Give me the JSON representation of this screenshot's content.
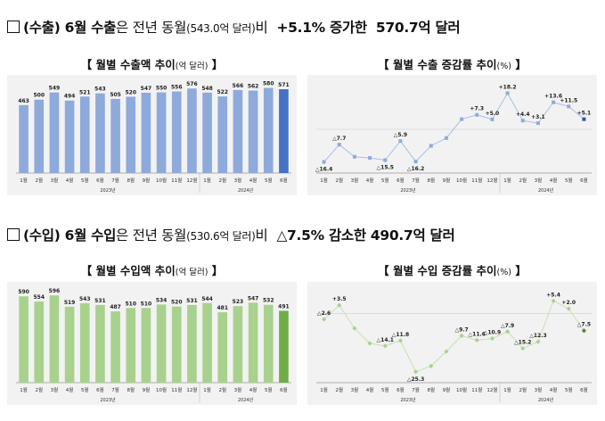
{
  "export_headline": {
    "part1": "(수출) 6월 수출",
    "part2": "은 전년 동월",
    "part3": "(543.0억 달러)",
    "part4": "비",
    "part5": "+5.1% 증가한",
    "part6": "570.7억 달러"
  },
  "import_headline": {
    "part1": "(수입) 6월 수입",
    "part2": "은 전년 동월",
    "part3": "(530.6억 달러)",
    "part4": "비",
    "part5": "△7.5% 감소한 490.7억 달러"
  },
  "chart_titles": {
    "export_amount": {
      "main": "【 월별 수출액 추이",
      "unit": "(억 달러)",
      "close": " 】"
    },
    "export_rate": {
      "main": "【 월별 수출 증감률 추이",
      "unit": "(%)",
      "close": " 】"
    },
    "import_amount": {
      "main": "【 월별 수입액 추이",
      "unit": "(억 달러)",
      "close": " 】"
    },
    "import_rate": {
      "main": "【 월별 수입 증감률 추이",
      "unit": "(%)",
      "close": " 】"
    }
  },
  "colors": {
    "export_bar": "#8eaadb",
    "export_bar_last": "#4472c4",
    "export_line": "#a9bfe6",
    "export_marker": "#8eaadb",
    "export_marker_last": "#2f5597",
    "import_bar": "#a9d18e",
    "import_bar_last": "#70ad47",
    "import_line": "#c5e0b4",
    "import_marker": "#a9d18e",
    "import_marker_last": "#548235",
    "panel": "#f2f2f2"
  },
  "chart_data": [
    {
      "id": "export_amount",
      "type": "bar",
      "categories": [
        "1월",
        "2월",
        "3월",
        "4월",
        "5월",
        "6월",
        "7월",
        "8월",
        "9월",
        "10월",
        "11월",
        "12월",
        "1월",
        "2월",
        "3월",
        "4월",
        "5월",
        "6월"
      ],
      "year_labels": [
        {
          "label": "2023년",
          "start": 0,
          "end": 11
        },
        {
          "label": "2024년",
          "start": 12,
          "end": 17
        }
      ],
      "values": [
        463,
        500,
        549,
        494,
        521,
        543,
        505,
        520,
        547,
        550,
        556,
        576,
        548,
        522,
        566,
        562,
        580,
        571
      ],
      "value_labels": [
        "463",
        "500",
        "549",
        "494",
        "521",
        "543",
        "505",
        "520",
        "547",
        "550",
        "556",
        "576",
        "548",
        "522",
        "566",
        "562",
        "580",
        "571"
      ],
      "ylim": [
        0,
        620
      ]
    },
    {
      "id": "export_rate",
      "type": "line",
      "categories": [
        "1월",
        "2월",
        "3월",
        "4월",
        "5월",
        "6월",
        "7월",
        "8월",
        "9월",
        "10월",
        "11월",
        "12월",
        "1월",
        "2월",
        "3월",
        "4월",
        "5월",
        "6월"
      ],
      "year_labels": [
        {
          "label": "2023년",
          "start": 0,
          "end": 11
        },
        {
          "label": "2024년",
          "start": 12,
          "end": 17
        }
      ],
      "values": [
        -16.4,
        -7.7,
        -13.8,
        -14.4,
        -15.5,
        -5.9,
        -16.2,
        -8.3,
        -4.4,
        5.1,
        7.3,
        5.0,
        18.2,
        4.4,
        3.1,
        13.6,
        11.5,
        5.1
      ],
      "data_labels": [
        "△16.4",
        "△7.7",
        "",
        "",
        "△15.5",
        "△5.9",
        "△16.2",
        "",
        "",
        "",
        "+7.3",
        "+5.0",
        "+18.2",
        "+4.4",
        "+3.1",
        "+13.6",
        "+11.5",
        "+5.1"
      ],
      "ylim": [
        -22,
        22
      ]
    },
    {
      "id": "import_amount",
      "type": "bar",
      "categories": [
        "1월",
        "2월",
        "3월",
        "4월",
        "5월",
        "6월",
        "7월",
        "8월",
        "9월",
        "10월",
        "11월",
        "12월",
        "1월",
        "2월",
        "3월",
        "4월",
        "5월",
        "6월"
      ],
      "year_labels": [
        {
          "label": "2023년",
          "start": 0,
          "end": 11
        },
        {
          "label": "2024년",
          "start": 12,
          "end": 17
        }
      ],
      "values": [
        590,
        554,
        596,
        519,
        543,
        531,
        487,
        510,
        510,
        534,
        520,
        531,
        544,
        481,
        523,
        547,
        532,
        491
      ],
      "value_labels": [
        "590",
        "554",
        "596",
        "519",
        "543",
        "531",
        "487",
        "510",
        "510",
        "534",
        "520",
        "531",
        "544",
        "481",
        "523",
        "547",
        "532",
        "491"
      ],
      "ylim": [
        0,
        640
      ]
    },
    {
      "id": "import_rate",
      "type": "line",
      "categories": [
        "1월",
        "2월",
        "3월",
        "4월",
        "5월",
        "6월",
        "7월",
        "8월",
        "9월",
        "10월",
        "11월",
        "12월",
        "1월",
        "2월",
        "3월",
        "4월",
        "5월",
        "6월"
      ],
      "year_labels": [
        {
          "label": "2023년",
          "start": 0,
          "end": 11
        },
        {
          "label": "2024년",
          "start": 12,
          "end": 17
        }
      ],
      "values": [
        -2.6,
        3.5,
        -6.5,
        -13.0,
        -14.1,
        -11.8,
        -25.3,
        -22.8,
        -16.5,
        -9.7,
        -11.6,
        -10.9,
        -7.9,
        -15.2,
        -12.3,
        5.4,
        2.0,
        -7.5
      ],
      "data_labels": [
        "△2.6",
        "+3.5",
        "",
        "",
        "△14.1",
        "△11.8",
        "△25.3",
        "",
        "",
        "△9.7",
        "△11.6",
        "△10.9",
        "△7.9",
        "△15.2",
        "△12.3",
        "+5.4",
        "+2.0",
        "△7.5"
      ],
      "ylim": [
        -30,
        9
      ]
    }
  ]
}
